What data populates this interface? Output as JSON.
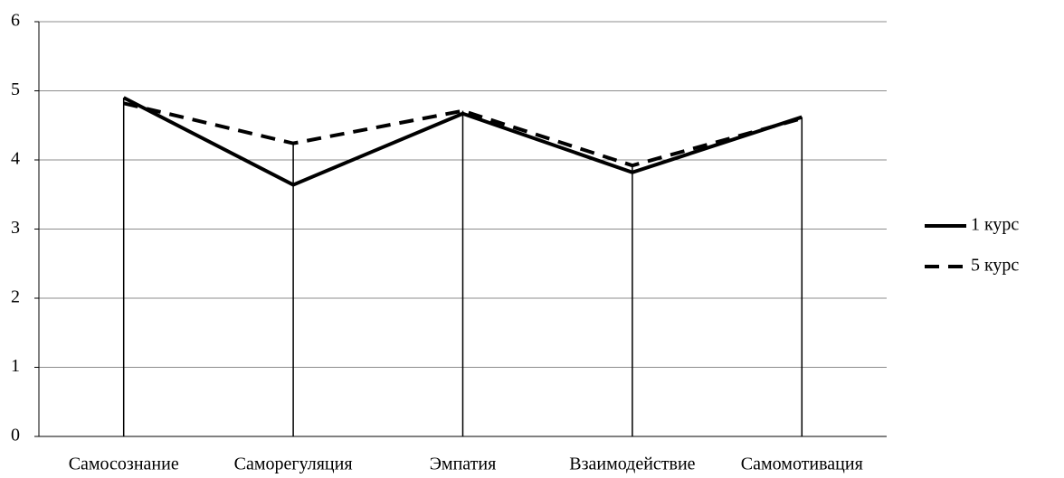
{
  "chart_data": {
    "type": "line",
    "categories": [
      "Самосознание",
      "Саморегуляция",
      "Эмпатия",
      "Взаимодействие",
      "Самомотивация"
    ],
    "series": [
      {
        "name": "1 курс",
        "color": "#000000",
        "style": "solid",
        "values": [
          4.9,
          3.64,
          4.67,
          3.82,
          4.62
        ]
      },
      {
        "name": "5 курс",
        "color": "#000000",
        "style": "dashed",
        "values": [
          4.82,
          4.24,
          4.71,
          3.92,
          4.6
        ]
      }
    ],
    "ylim": [
      0,
      6
    ],
    "yticks": [
      0,
      1,
      2,
      3,
      4,
      5,
      6
    ],
    "grid": true,
    "drop_lines": true,
    "legend": "right"
  }
}
